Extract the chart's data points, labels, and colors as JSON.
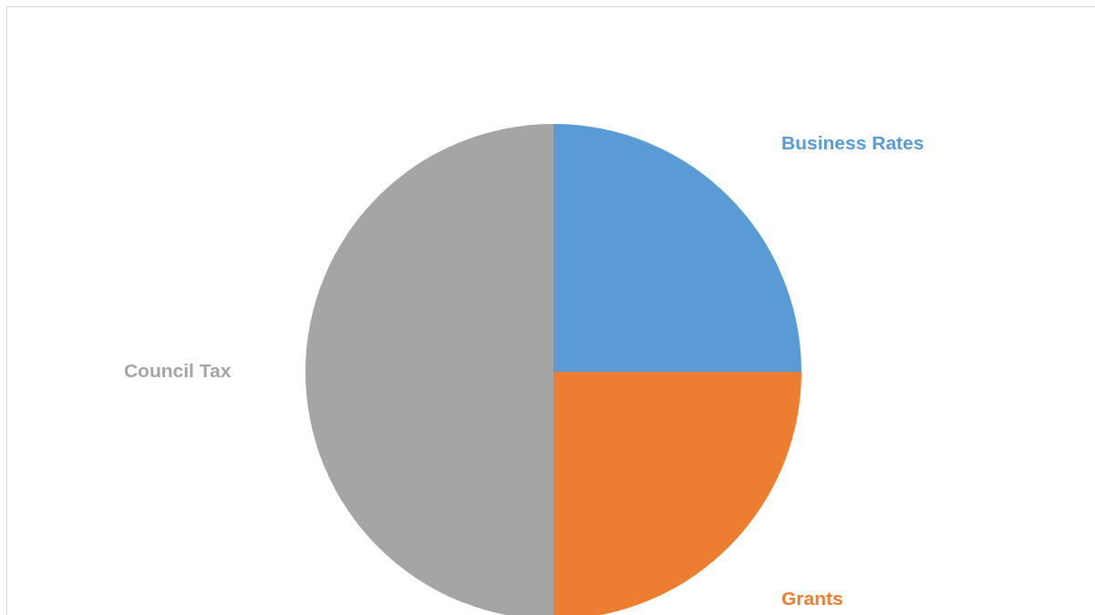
{
  "chart_data": {
    "type": "pie",
    "categories": [
      "Business Rates",
      "Grants",
      "Council Tax"
    ],
    "values": [
      25,
      25,
      50
    ],
    "colors": [
      "#5b9bd5",
      "#ed7d31",
      "#a5a5a5"
    ],
    "legend": false
  }
}
